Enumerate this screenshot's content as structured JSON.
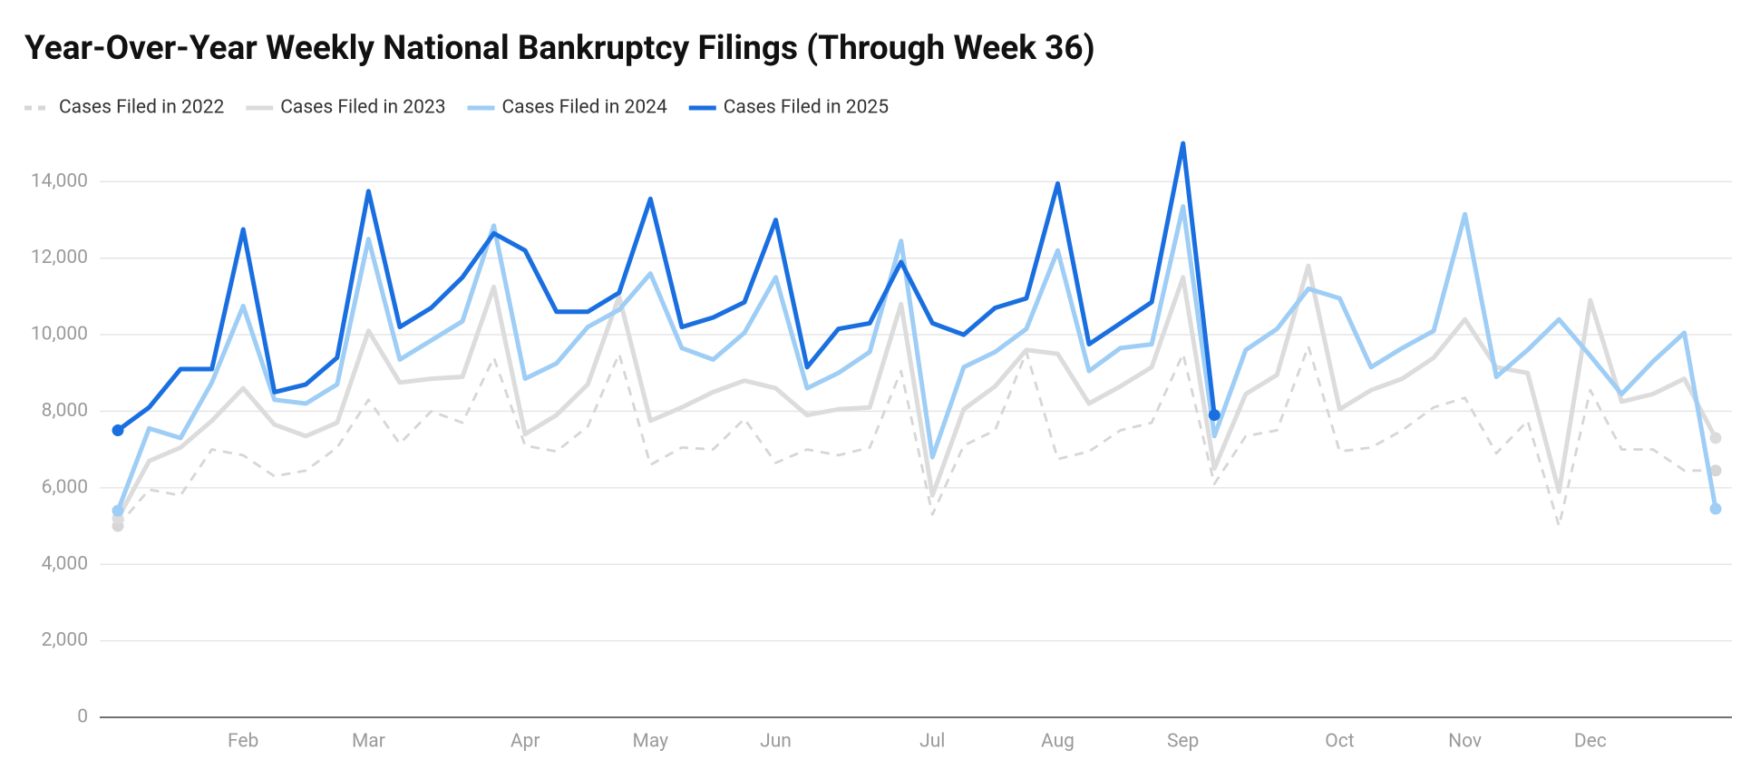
{
  "chart_data": {
    "type": "line",
    "title": "Year-Over-Year Weekly National Bankruptcy Filings (Through Week 36)",
    "categories": [
      null,
      null,
      null,
      null,
      "Feb",
      null,
      null,
      null,
      "Mar",
      null,
      null,
      null,
      null,
      "Apr",
      null,
      null,
      null,
      "May",
      null,
      null,
      null,
      "Jun",
      null,
      null,
      null,
      null,
      "Jul",
      null,
      null,
      null,
      "Aug",
      null,
      null,
      null,
      "Sep",
      null,
      null,
      null,
      null,
      "Oct",
      null,
      null,
      null,
      "Nov",
      null,
      null,
      null,
      "Dec",
      null,
      null,
      null,
      null
    ],
    "series": [
      {
        "name": "Cases Filed in 2022",
        "color": "#d6d6d6",
        "dashed": true,
        "values": [
          5000,
          5950,
          5800,
          7000,
          6850,
          6300,
          6450,
          7050,
          8300,
          7150,
          8000,
          7700,
          9400,
          7100,
          6950,
          7600,
          9500,
          6600,
          7050,
          7000,
          7800,
          6650,
          7000,
          6850,
          7050,
          9050,
          5300,
          7100,
          7500,
          9550,
          6750,
          6950,
          7500,
          7700,
          9500,
          6100,
          7350,
          7500,
          9700,
          6950,
          7050,
          7500,
          8100,
          8350,
          6900,
          7750,
          5000,
          8550,
          7000,
          7000,
          6450,
          6450
        ]
      },
      {
        "name": "Cases Filed in 2023",
        "color": "#dcdcdc",
        "dashed": false,
        "values": [
          5200,
          6700,
          7050,
          7750,
          8600,
          7650,
          7350,
          7700,
          10100,
          8750,
          8850,
          8900,
          11250,
          7400,
          7900,
          8700,
          11000,
          7750,
          8100,
          8500,
          8800,
          8600,
          7900,
          8050,
          8100,
          10800,
          5800,
          8050,
          8650,
          9600,
          9500,
          8200,
          8650,
          9150,
          11500,
          6500,
          8450,
          8950,
          11800,
          8050,
          8550,
          8850,
          9400,
          10400,
          9150,
          9000,
          5900,
          10900,
          8250,
          8450,
          8850,
          7300
        ]
      },
      {
        "name": "Cases Filed in 2024",
        "color": "#9ecdf5",
        "dashed": false,
        "values": [
          5400,
          7550,
          7300,
          8750,
          10750,
          8300,
          8200,
          8700,
          12500,
          9350,
          9850,
          10350,
          12850,
          8850,
          9250,
          10200,
          10650,
          11600,
          9650,
          9350,
          10050,
          11500,
          8600,
          9000,
          9550,
          12450,
          6800,
          9150,
          9550,
          10150,
          12200,
          9050,
          9650,
          9750,
          13350,
          7350,
          9600,
          10150,
          11200,
          10950,
          9150,
          9650,
          10100,
          13150,
          8900,
          9600,
          10400,
          9450,
          8450,
          9300,
          10050,
          5450
        ]
      },
      {
        "name": "Cases Filed in 2025",
        "color": "#1a6fe0",
        "dashed": false,
        "values": [
          7500,
          8100,
          9100,
          9100,
          12750,
          8500,
          8700,
          9400,
          13750,
          10200,
          10700,
          11500,
          12650,
          12200,
          10600,
          10600,
          11100,
          13550,
          10200,
          10450,
          10850,
          13000,
          9150,
          10150,
          10300,
          11900,
          10300,
          10000,
          10700,
          10950,
          13950,
          9750,
          10300,
          10850,
          15000,
          7900,
          null,
          null,
          null,
          null,
          null,
          null,
          null,
          null,
          null,
          null,
          null,
          null,
          null,
          null,
          null,
          null
        ]
      }
    ],
    "ylim": [
      0,
      15500
    ],
    "yticks": [
      0,
      {
        "value": 2000,
        "label": "2,000"
      },
      {
        "value": 4000,
        "label": "4,000"
      },
      {
        "value": 6000,
        "label": "6,000"
      },
      {
        "value": 8000,
        "label": "8,000"
      },
      {
        "value": 10000,
        "label": "10,000"
      },
      {
        "value": 12000,
        "label": "12,000"
      },
      {
        "value": 14000,
        "label": "14,000"
      }
    ],
    "grid": true,
    "legend": "top-left"
  }
}
